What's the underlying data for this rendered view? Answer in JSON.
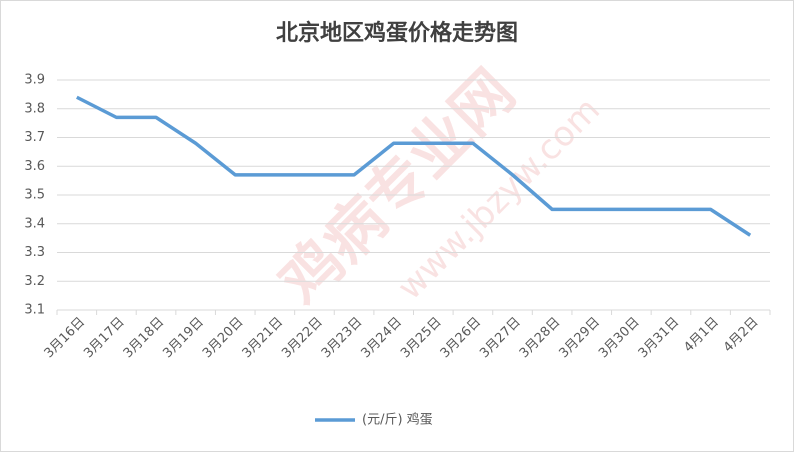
{
  "chart_data": {
    "type": "line",
    "title": "北京地区鸡蛋价格走势图",
    "categories": [
      "3月16日",
      "3月17日",
      "3月18日",
      "3月19日",
      "3月20日",
      "3月21日",
      "3月22日",
      "3月23日",
      "3月24日",
      "3月25日",
      "3月26日",
      "3月27日",
      "3月28日",
      "3月29日",
      "3月30日",
      "3月31日",
      "4月1日",
      "4月2日"
    ],
    "series": [
      {
        "name": "(元/斤) 鸡蛋",
        "color": "#5b9bd5",
        "values": [
          3.84,
          3.77,
          3.77,
          3.68,
          3.57,
          3.57,
          3.57,
          3.57,
          3.68,
          3.68,
          3.68,
          3.57,
          3.45,
          3.45,
          3.45,
          3.45,
          3.45,
          3.36
        ]
      }
    ],
    "ylim": [
      3.1,
      3.9
    ],
    "yticks": [
      3.1,
      3.2,
      3.3,
      3.4,
      3.5,
      3.6,
      3.7,
      3.8,
      3.9
    ],
    "grid": true,
    "legend": "bottom",
    "watermark": [
      "鸡病专业网",
      "www.jbzyw.com"
    ]
  }
}
